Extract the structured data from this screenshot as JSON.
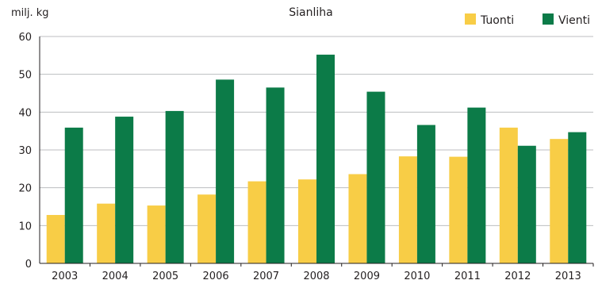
{
  "chart_data": {
    "type": "bar",
    "title": "Sianliha",
    "ylabel": "milj. kg",
    "xlabel": "",
    "ylim": [
      0,
      60
    ],
    "yticks": [
      0,
      10,
      20,
      30,
      40,
      50,
      60
    ],
    "grid": true,
    "legend_position": "top-right",
    "categories": [
      "2003",
      "2004",
      "2005",
      "2006",
      "2007",
      "2008",
      "2009",
      "2010",
      "2011",
      "2012",
      "2013"
    ],
    "series": [
      {
        "name": "Tuonti",
        "color": "#f8cd46",
        "values": [
          12.8,
          15.8,
          15.3,
          18.2,
          21.7,
          22.2,
          23.6,
          28.3,
          28.2,
          35.9,
          32.9
        ]
      },
      {
        "name": "Vienti",
        "color": "#0c7b48",
        "values": [
          35.9,
          38.8,
          40.3,
          48.6,
          46.5,
          55.2,
          45.4,
          36.6,
          41.2,
          31.1,
          34.7
        ]
      }
    ]
  }
}
